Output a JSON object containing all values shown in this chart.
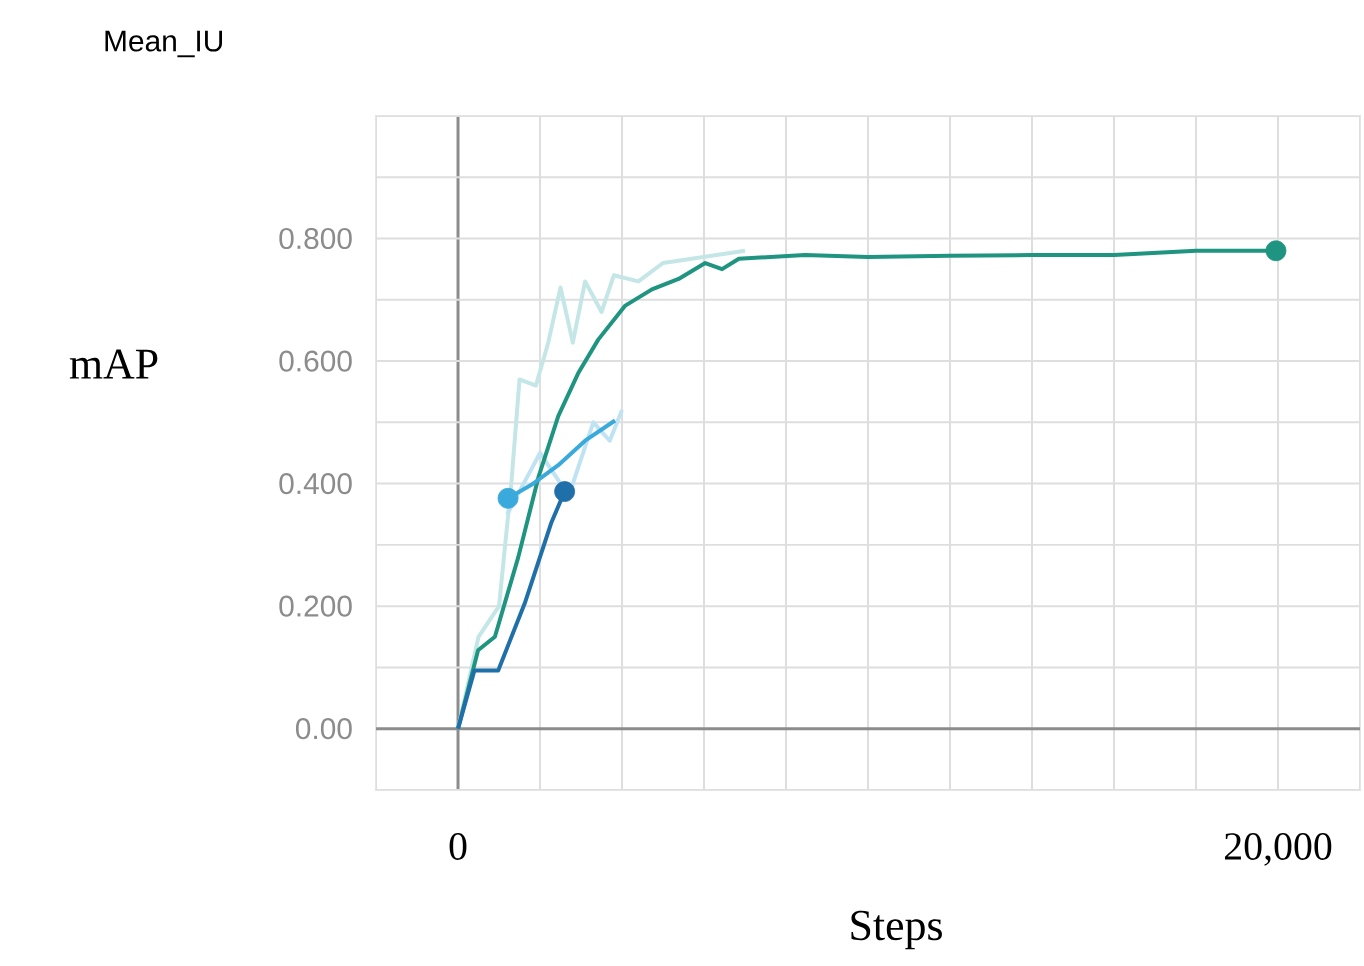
{
  "chart_data": {
    "type": "line",
    "title": "Mean_IU",
    "xlabel": "Steps",
    "ylabel": "mAP",
    "xlim": [
      -2000,
      22000
    ],
    "ylim": [
      -0.1,
      1.0
    ],
    "xticks": [
      {
        "value": -2000,
        "label": null
      },
      {
        "value": 0,
        "label": "0"
      },
      {
        "value": 2000,
        "label": null
      },
      {
        "value": 4000,
        "label": null
      },
      {
        "value": 6000,
        "label": null
      },
      {
        "value": 8000,
        "label": null
      },
      {
        "value": 10000,
        "label": null
      },
      {
        "value": 12000,
        "label": null
      },
      {
        "value": 14000,
        "label": null
      },
      {
        "value": 16000,
        "label": null
      },
      {
        "value": 18000,
        "label": null
      },
      {
        "value": 20000,
        "label": "20,000"
      },
      {
        "value": 22000,
        "label": null
      }
    ],
    "yticks": [
      {
        "value": -0.1,
        "label": null
      },
      {
        "value": 0,
        "label": "0.00"
      },
      {
        "value": 0.1,
        "label": null
      },
      {
        "value": 0.2,
        "label": "0.200"
      },
      {
        "value": 0.3,
        "label": null
      },
      {
        "value": 0.4,
        "label": "0.400"
      },
      {
        "value": 0.5,
        "label": null
      },
      {
        "value": 0.6,
        "label": "0.600"
      },
      {
        "value": 0.7,
        "label": null
      },
      {
        "value": 0.8,
        "label": "0.800"
      },
      {
        "value": 0.9,
        "label": null
      },
      {
        "value": 1.0,
        "label": null
      }
    ],
    "grid": true,
    "marker": "none",
    "line_style": "solid",
    "series": [
      {
        "color": "#c4e6e6",
        "x": [
          0,
          500,
          1000,
          1300,
          1500,
          1900,
          2200,
          2500,
          2800,
          3100,
          3500,
          3800,
          4400,
          5000,
          6000,
          7000
        ],
        "values": [
          0,
          0.15,
          0.2,
          0.4,
          0.57,
          0.56,
          0.63,
          0.72,
          0.63,
          0.73,
          0.68,
          0.74,
          0.73,
          0.76,
          0.77,
          0.78
        ]
      },
      {
        "color": "#bfe3f3",
        "x": [
          1200,
          1600,
          2000,
          2400,
          2700,
          3000,
          3300,
          3700,
          4000
        ],
        "values": [
          0.35,
          0.4,
          0.45,
          0.41,
          0.38,
          0.44,
          0.5,
          0.47,
          0.52
        ]
      },
      {
        "color": "#1f9480",
        "x": [
          0,
          489,
          900,
          1470,
          1960,
          2445,
          2930,
          3420,
          4070,
          4730,
          5380,
          6030,
          6440,
          6850,
          8460,
          10000,
          12000,
          14000,
          16000,
          18000,
          19950
        ],
        "values": [
          0,
          0.128,
          0.15,
          0.28,
          0.41,
          0.51,
          0.58,
          0.635,
          0.69,
          0.717,
          0.734,
          0.76,
          0.75,
          0.767,
          0.773,
          0.77,
          0.772,
          0.773,
          0.773,
          0.78,
          0.78
        ]
      },
      {
        "color": "#1f6fa8",
        "x": [
          0,
          400,
          980,
          1630,
          2280,
          2600
        ],
        "values": [
          0,
          0.095,
          0.095,
          0.205,
          0.337,
          0.387
        ]
      },
      {
        "color": "#3aa9dc",
        "x": [
          1220,
          1790,
          2445,
          3100,
          3830
        ],
        "values": [
          0.376,
          0.398,
          0.43,
          0.47,
          0.503
        ]
      },
      {
        "type": "scatter",
        "marker": "circle",
        "x": [
          19950,
          2600,
          1220
        ],
        "values": [
          0.78,
          0.387,
          0.376
        ],
        "colors": [
          "#1f9480",
          "#1f6fa8",
          "#3aa9dc"
        ]
      }
    ]
  }
}
